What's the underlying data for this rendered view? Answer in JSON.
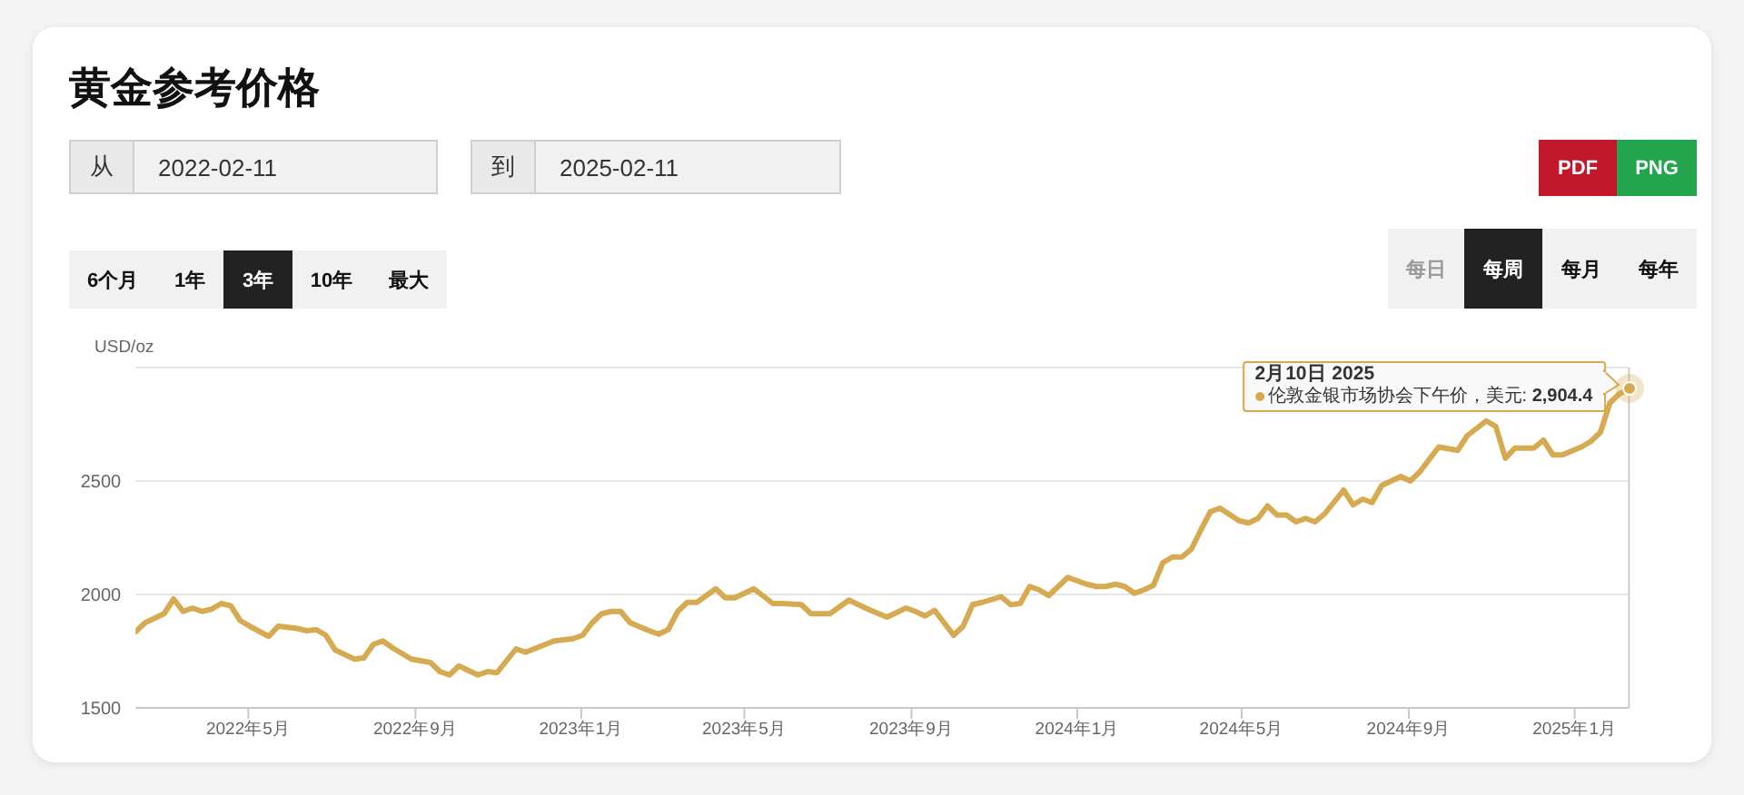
{
  "chart_data": {
    "type": "line",
    "title": "黄金参考价格",
    "ylabel": "USD/oz",
    "color": "#d6aa50",
    "grid": "y",
    "x": [
      "2022-02-07",
      "2022-02-14",
      "2022-02-28",
      "2022-03-07",
      "2022-03-14",
      "2022-03-21",
      "2022-03-28",
      "2022-04-04",
      "2022-04-11",
      "2022-04-18",
      "2022-04-25",
      "2022-05-02",
      "2022-05-16",
      "2022-05-23",
      "2022-06-06",
      "2022-06-13",
      "2022-06-20",
      "2022-06-27",
      "2022-07-04",
      "2022-07-18",
      "2022-07-25",
      "2022-08-01",
      "2022-08-08",
      "2022-08-15",
      "2022-08-29",
      "2022-09-12",
      "2022-09-19",
      "2022-09-26",
      "2022-10-03",
      "2022-10-17",
      "2022-10-24",
      "2022-10-31",
      "2022-11-14",
      "2022-11-21",
      "2022-12-12",
      "2022-12-26",
      "2023-01-02",
      "2023-01-09",
      "2023-01-16",
      "2023-01-23",
      "2023-01-30",
      "2023-02-06",
      "2023-02-20",
      "2023-02-27",
      "2023-03-06",
      "2023-03-13",
      "2023-03-20",
      "2023-03-27",
      "2023-04-10",
      "2023-04-17",
      "2023-04-24",
      "2023-05-08",
      "2023-05-22",
      "2023-05-29",
      "2023-06-12",
      "2023-06-19",
      "2023-07-03",
      "2023-07-17",
      "2023-07-31",
      "2023-08-14",
      "2023-08-28",
      "2023-09-04",
      "2023-09-11",
      "2023-09-18",
      "2023-10-02",
      "2023-10-09",
      "2023-10-16",
      "2023-10-23",
      "2023-11-06",
      "2023-11-13",
      "2023-11-20",
      "2023-11-27",
      "2023-12-04",
      "2023-12-11",
      "2023-12-25",
      "2024-01-08",
      "2024-01-15",
      "2024-01-22",
      "2024-01-29",
      "2024-02-05",
      "2024-02-12",
      "2024-02-19",
      "2024-02-26",
      "2024-03-04",
      "2024-03-11",
      "2024-03-18",
      "2024-03-25",
      "2024-04-01",
      "2024-04-08",
      "2024-04-15",
      "2024-04-29",
      "2024-05-06",
      "2024-05-13",
      "2024-05-20",
      "2024-05-27",
      "2024-06-03",
      "2024-06-10",
      "2024-06-17",
      "2024-06-24",
      "2024-07-01",
      "2024-07-15",
      "2024-07-22",
      "2024-07-29",
      "2024-08-05",
      "2024-08-12",
      "2024-08-26",
      "2024-09-02",
      "2024-09-09",
      "2024-09-23",
      "2024-10-07",
      "2024-10-14",
      "2024-10-28",
      "2024-11-04",
      "2024-11-11",
      "2024-11-18",
      "2024-12-02",
      "2024-12-09",
      "2024-12-16",
      "2024-12-23",
      "2025-01-06",
      "2025-01-13",
      "2025-01-20",
      "2025-01-27",
      "2025-02-03",
      "2025-02-10"
    ],
    "values": [
      1835,
      1875,
      1915,
      1980,
      1925,
      1940,
      1925,
      1935,
      1960,
      1950,
      1885,
      1860,
      1815,
      1860,
      1850,
      1840,
      1845,
      1820,
      1755,
      1715,
      1720,
      1780,
      1795,
      1765,
      1715,
      1700,
      1660,
      1645,
      1685,
      1645,
      1660,
      1655,
      1760,
      1745,
      1795,
      1805,
      1820,
      1875,
      1915,
      1925,
      1925,
      1875,
      1840,
      1825,
      1845,
      1925,
      1965,
      1965,
      2025,
      1985,
      1985,
      2025,
      1960,
      1960,
      1955,
      1915,
      1915,
      1975,
      1935,
      1900,
      1940,
      1925,
      1905,
      1930,
      1820,
      1860,
      1955,
      1965,
      1990,
      1955,
      1960,
      2035,
      2020,
      1995,
      2075,
      2045,
      2035,
      2035,
      2045,
      2035,
      2005,
      2020,
      2040,
      2140,
      2165,
      2165,
      2200,
      2285,
      2365,
      2380,
      2325,
      2315,
      2335,
      2390,
      2350,
      2350,
      2320,
      2335,
      2320,
      2355,
      2460,
      2395,
      2420,
      2405,
      2480,
      2520,
      2500,
      2540,
      2650,
      2635,
      2700,
      2765,
      2740,
      2600,
      2645,
      2645,
      2680,
      2615,
      2615,
      2650,
      2675,
      2715,
      2845,
      2885,
      2904.4
    ],
    "xlim": [
      "2022-02-07",
      "2025-02-10"
    ],
    "xticks": [
      {
        "value": "2022-05-01",
        "label": "2022年5月"
      },
      {
        "value": "2022-09-01",
        "label": "2022年9月"
      },
      {
        "value": "2023-01-01",
        "label": "2023年1月"
      },
      {
        "value": "2023-05-01",
        "label": "2023年5月"
      },
      {
        "value": "2023-09-01",
        "label": "2023年9月"
      },
      {
        "value": "2024-01-01",
        "label": "2024年1月"
      },
      {
        "value": "2024-05-01",
        "label": "2024年5月"
      },
      {
        "value": "2024-09-01",
        "label": "2024年9月"
      },
      {
        "value": "2025-01-01",
        "label": "2025年1月"
      }
    ],
    "ylim": [
      1500,
      3000
    ],
    "yticks": [
      1500,
      2000,
      2500,
      {
        "value": 3000,
        "label": null
      }
    ],
    "ref_lines": [
      {
        "axis": "x",
        "value": "2025-02-10",
        "color": "#cccccc"
      }
    ],
    "annotations": [
      "从",
      "2022-02-11",
      "到",
      "2025-02-11",
      "PDF",
      "PNG",
      "6个月",
      "1年",
      "3年",
      "10年",
      "最大",
      "每日",
      "每周",
      "每月",
      "每年",
      "2月10日 2025",
      {
        "text": "伦敦金银市场协会下午价，美元: 2,904.4",
        "x": "2025-02-10",
        "y": 2904.4
      }
    ]
  }
}
